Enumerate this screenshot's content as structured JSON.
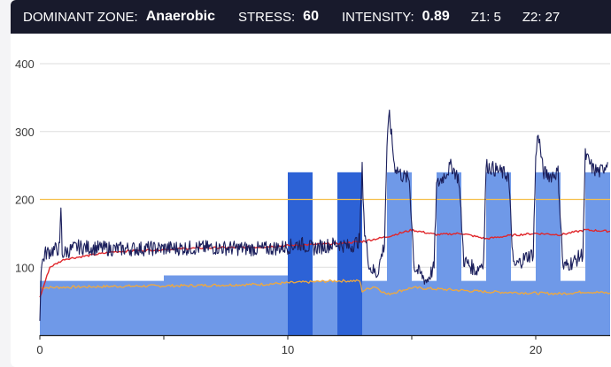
{
  "header": {
    "zone_label": "DOMINANT ZONE:",
    "zone_value": "Anaerobic",
    "stress_label": "STRESS:",
    "stress_value": "60",
    "intensity_label": "INTENSITY:",
    "intensity_value": "0.89",
    "z1_label": "Z1:",
    "z1_value": "5",
    "z2_label": "Z2:",
    "z2_value": "27"
  },
  "colors": {
    "header_bg": "#181a2c",
    "power": "#1b1f5c",
    "heart_rate": "#e0262b",
    "cadence": "#f2a93b",
    "threshold": "#f6c04b",
    "block_light": "#6f99e8",
    "block_dark": "#2d62d6",
    "grid": "#dedede"
  },
  "chart_data": {
    "type": "line",
    "xlim": [
      0,
      23
    ],
    "ylim": [
      0,
      430
    ],
    "x_ticks": [
      "0",
      "10",
      "20"
    ],
    "y_ticks": [
      "100",
      "200",
      "300",
      "400"
    ],
    "threshold_line": 200,
    "workout_blocks": [
      {
        "x0": 0,
        "x1": 5,
        "y": 80,
        "kind": "light"
      },
      {
        "x0": 5,
        "x1": 10,
        "y": 88,
        "kind": "light"
      },
      {
        "x0": 10,
        "x1": 11,
        "y": 240,
        "kind": "dark"
      },
      {
        "x0": 11,
        "x1": 12,
        "y": 80,
        "kind": "light"
      },
      {
        "x0": 12,
        "x1": 13,
        "y": 240,
        "kind": "dark"
      },
      {
        "x0": 13,
        "x1": 14,
        "y": 80,
        "kind": "light"
      },
      {
        "x0": 14,
        "x1": 15,
        "y": 240,
        "kind": "light"
      },
      {
        "x0": 15,
        "x1": 16,
        "y": 80,
        "kind": "light"
      },
      {
        "x0": 16,
        "x1": 17,
        "y": 240,
        "kind": "light"
      },
      {
        "x0": 17,
        "x1": 18,
        "y": 80,
        "kind": "light"
      },
      {
        "x0": 18,
        "x1": 19,
        "y": 240,
        "kind": "light"
      },
      {
        "x0": 19,
        "x1": 20,
        "y": 80,
        "kind": "light"
      },
      {
        "x0": 20,
        "x1": 21,
        "y": 240,
        "kind": "light"
      },
      {
        "x0": 21,
        "x1": 22,
        "y": 80,
        "kind": "light"
      },
      {
        "x0": 22,
        "x1": 23,
        "y": 240,
        "kind": "light"
      }
    ],
    "series": [
      {
        "values": [
          [
            0,
            20
          ],
          [
            0.05,
            100
          ],
          [
            0.2,
            120
          ],
          [
            0.5,
            125
          ],
          [
            0.8,
            128
          ],
          [
            0.85,
            190
          ],
          [
            0.9,
            120
          ],
          [
            1.5,
            130
          ],
          [
            3,
            127
          ],
          [
            5,
            128
          ],
          [
            7,
            129
          ],
          [
            9,
            127
          ],
          [
            10,
            130
          ],
          [
            10.5,
            135
          ],
          [
            11,
            128
          ],
          [
            12,
            135
          ],
          [
            12.5,
            130
          ],
          [
            12.9,
            140
          ],
          [
            13.0,
            245
          ],
          [
            13.1,
            150
          ],
          [
            13.3,
            100
          ],
          [
            13.6,
            90
          ],
          [
            13.9,
            135
          ],
          [
            14.0,
            280
          ],
          [
            14.1,
            325
          ],
          [
            14.3,
            250
          ],
          [
            14.6,
            235
          ],
          [
            14.9,
            230
          ],
          [
            15.1,
            100
          ],
          [
            15.6,
            80
          ],
          [
            15.9,
            100
          ],
          [
            16.0,
            220
          ],
          [
            16.3,
            235
          ],
          [
            16.6,
            250
          ],
          [
            16.9,
            230
          ],
          [
            17.1,
            110
          ],
          [
            17.6,
            95
          ],
          [
            17.9,
            110
          ],
          [
            18.0,
            250
          ],
          [
            18.3,
            245
          ],
          [
            18.6,
            240
          ],
          [
            18.9,
            235
          ],
          [
            19.1,
            100
          ],
          [
            19.6,
            115
          ],
          [
            19.9,
            120
          ],
          [
            20.0,
            260
          ],
          [
            20.1,
            300
          ],
          [
            20.3,
            240
          ],
          [
            20.6,
            235
          ],
          [
            20.9,
            240
          ],
          [
            21.1,
            100
          ],
          [
            21.6,
            110
          ],
          [
            21.9,
            120
          ],
          [
            22.0,
            265
          ],
          [
            22.3,
            245
          ],
          [
            22.6,
            240
          ],
          [
            22.9,
            255
          ]
        ]
      },
      {
        "values": [
          [
            0,
            55
          ],
          [
            0.4,
            100
          ],
          [
            1,
            112
          ],
          [
            3,
            123
          ],
          [
            6,
            128
          ],
          [
            9,
            130
          ],
          [
            10,
            132
          ],
          [
            12,
            135
          ],
          [
            13,
            138
          ],
          [
            14,
            145
          ],
          [
            15,
            155
          ],
          [
            16,
            148
          ],
          [
            17,
            150
          ],
          [
            18,
            142
          ],
          [
            19,
            147
          ],
          [
            20,
            150
          ],
          [
            21,
            148
          ],
          [
            22,
            155
          ],
          [
            23,
            153
          ]
        ]
      },
      {
        "values": [
          [
            0,
            70
          ],
          [
            3,
            72
          ],
          [
            6,
            73
          ],
          [
            9,
            75
          ],
          [
            10,
            77
          ],
          [
            12,
            80
          ],
          [
            12.9,
            80
          ],
          [
            13.0,
            65
          ],
          [
            13.5,
            72
          ],
          [
            14,
            60
          ],
          [
            15,
            70
          ],
          [
            16,
            68
          ],
          [
            17,
            66
          ],
          [
            18,
            64
          ],
          [
            19,
            63
          ],
          [
            20,
            62
          ],
          [
            21,
            61
          ],
          [
            22,
            64
          ],
          [
            23,
            62
          ]
        ]
      }
    ]
  }
}
